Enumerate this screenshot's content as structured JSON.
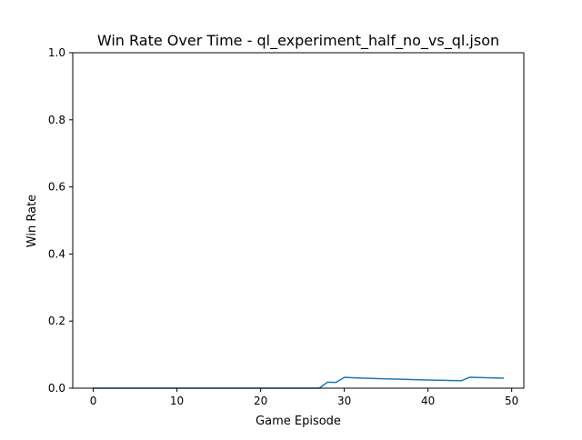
{
  "chart_data": {
    "type": "line",
    "title": "Win Rate Over Time - ql_experiment_half_no_vs_ql.json",
    "xlabel": "Game Episode",
    "ylabel": "Win Rate",
    "xlim": [
      -2.45,
      51.45
    ],
    "ylim": [
      0,
      1.0
    ],
    "x_ticks": [
      0,
      10,
      20,
      30,
      40,
      50
    ],
    "x_tick_labels": [
      "0",
      "10",
      "20",
      "30",
      "40",
      "50"
    ],
    "y_ticks": [
      0,
      0.2,
      0.4,
      0.6,
      0.8,
      1.0
    ],
    "y_tick_labels": [
      "0.0",
      "0.2",
      "0.4",
      "0.6",
      "0.8",
      "1.0"
    ],
    "grid": false,
    "legend": false,
    "series": [
      {
        "color": "#1f77b4",
        "x": [
          0,
          1,
          2,
          3,
          4,
          5,
          6,
          7,
          8,
          9,
          10,
          11,
          12,
          13,
          14,
          15,
          16,
          17,
          18,
          19,
          20,
          21,
          22,
          23,
          24,
          25,
          26,
          27,
          28,
          29,
          30,
          31,
          32,
          33,
          34,
          35,
          36,
          37,
          38,
          39,
          40,
          41,
          42,
          43,
          44,
          45,
          46,
          47,
          48,
          49
        ],
        "y": [
          0,
          0,
          0,
          0,
          0,
          0,
          0,
          0,
          0,
          0,
          0,
          0,
          0,
          0,
          0,
          0,
          0,
          0,
          0,
          0,
          0,
          0,
          0,
          0,
          0,
          0,
          0,
          0,
          0.0179,
          0.0172,
          0.0323,
          0.0313,
          0.0303,
          0.0294,
          0.0286,
          0.0278,
          0.027,
          0.0263,
          0.0256,
          0.025,
          0.0244,
          0.0238,
          0.0233,
          0.0227,
          0.0222,
          0.0326,
          0.0319,
          0.0313,
          0.0306,
          0.03
        ]
      }
    ]
  }
}
